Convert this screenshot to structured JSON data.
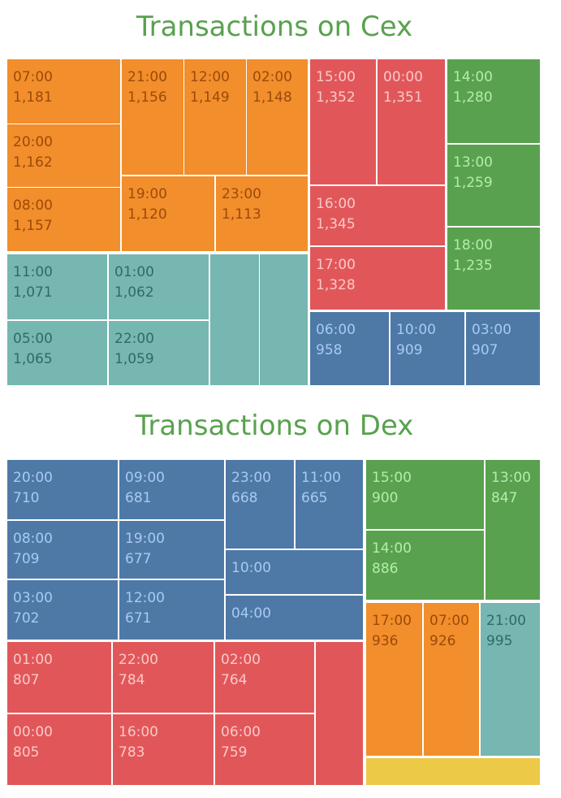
{
  "chart_data": [
    {
      "type": "treemap",
      "title": "Transactions on Cex",
      "categories": [
        "07:00",
        "20:00",
        "08:00",
        "21:00",
        "12:00",
        "02:00",
        "19:00",
        "23:00",
        "11:00",
        "05:00",
        "01:00",
        "22:00",
        null,
        null,
        "15:00",
        "00:00",
        "16:00",
        "17:00",
        "14:00",
        "13:00",
        "18:00",
        "06:00",
        "10:00",
        "03:00"
      ],
      "values": [
        1181,
        1162,
        1157,
        1156,
        1149,
        1148,
        1120,
        1113,
        1071,
        1065,
        1062,
        1059,
        1020,
        1015,
        1352,
        1351,
        1345,
        1328,
        1280,
        1259,
        1235,
        958,
        909,
        907
      ],
      "value_labels": [
        "1,181",
        "1,162",
        "1,157",
        "1,156",
        "1,149",
        "1,148",
        "1,120",
        "1,113",
        "1,071",
        "1,065",
        "1,062",
        "1,059",
        null,
        null,
        "1,352",
        "1,351",
        "1,345",
        "1,328",
        "1,280",
        "1,259",
        "1,235",
        "958",
        "909",
        "907"
      ],
      "colors": [
        "#f28e2b",
        "#f28e2b",
        "#f28e2b",
        "#f28e2b",
        "#f28e2b",
        "#f28e2b",
        "#f28e2b",
        "#f28e2b",
        "#76b7b2",
        "#76b7b2",
        "#76b7b2",
        "#76b7b2",
        "#76b7b2",
        "#76b7b2",
        "#e15759",
        "#e15759",
        "#e15759",
        "#e15759",
        "#59a14f",
        "#59a14f",
        "#59a14f",
        "#4e79a7",
        "#4e79a7",
        "#4e79a7"
      ]
    },
    {
      "type": "treemap",
      "title": "Transactions on Dex",
      "categories": [
        "20:00",
        "08:00",
        "03:00",
        "09:00",
        "19:00",
        "12:00",
        "23:00",
        "11:00",
        "10:00",
        "04:00",
        "01:00",
        "00:00",
        "22:00",
        "16:00",
        "02:00",
        "06:00",
        null,
        "15:00",
        "14:00",
        "13:00",
        "17:00",
        "07:00",
        "21:00",
        null
      ],
      "values": [
        710,
        709,
        702,
        681,
        677,
        671,
        668,
        665,
        653,
        650,
        807,
        805,
        784,
        783,
        764,
        759,
        729,
        900,
        886,
        847,
        936,
        926,
        995,
        504
      ],
      "value_labels": [
        "710",
        "709",
        "702",
        "681",
        "677",
        "671",
        "668",
        "665",
        null,
        null,
        "807",
        "805",
        "784",
        "783",
        "764",
        "759",
        null,
        "900",
        "886",
        "847",
        "936",
        "926",
        "995",
        null
      ],
      "colors": [
        "#4e79a7",
        "#4e79a7",
        "#4e79a7",
        "#4e79a7",
        "#4e79a7",
        "#4e79a7",
        "#4e79a7",
        "#4e79a7",
        "#4e79a7",
        "#4e79a7",
        "#e15759",
        "#e15759",
        "#e15759",
        "#e15759",
        "#e15759",
        "#e15759",
        "#e15759",
        "#59a14f",
        "#59a14f",
        "#59a14f",
        "#f28e2b",
        "#f28e2b",
        "#76b7b2",
        "#edc948"
      ]
    }
  ]
}
